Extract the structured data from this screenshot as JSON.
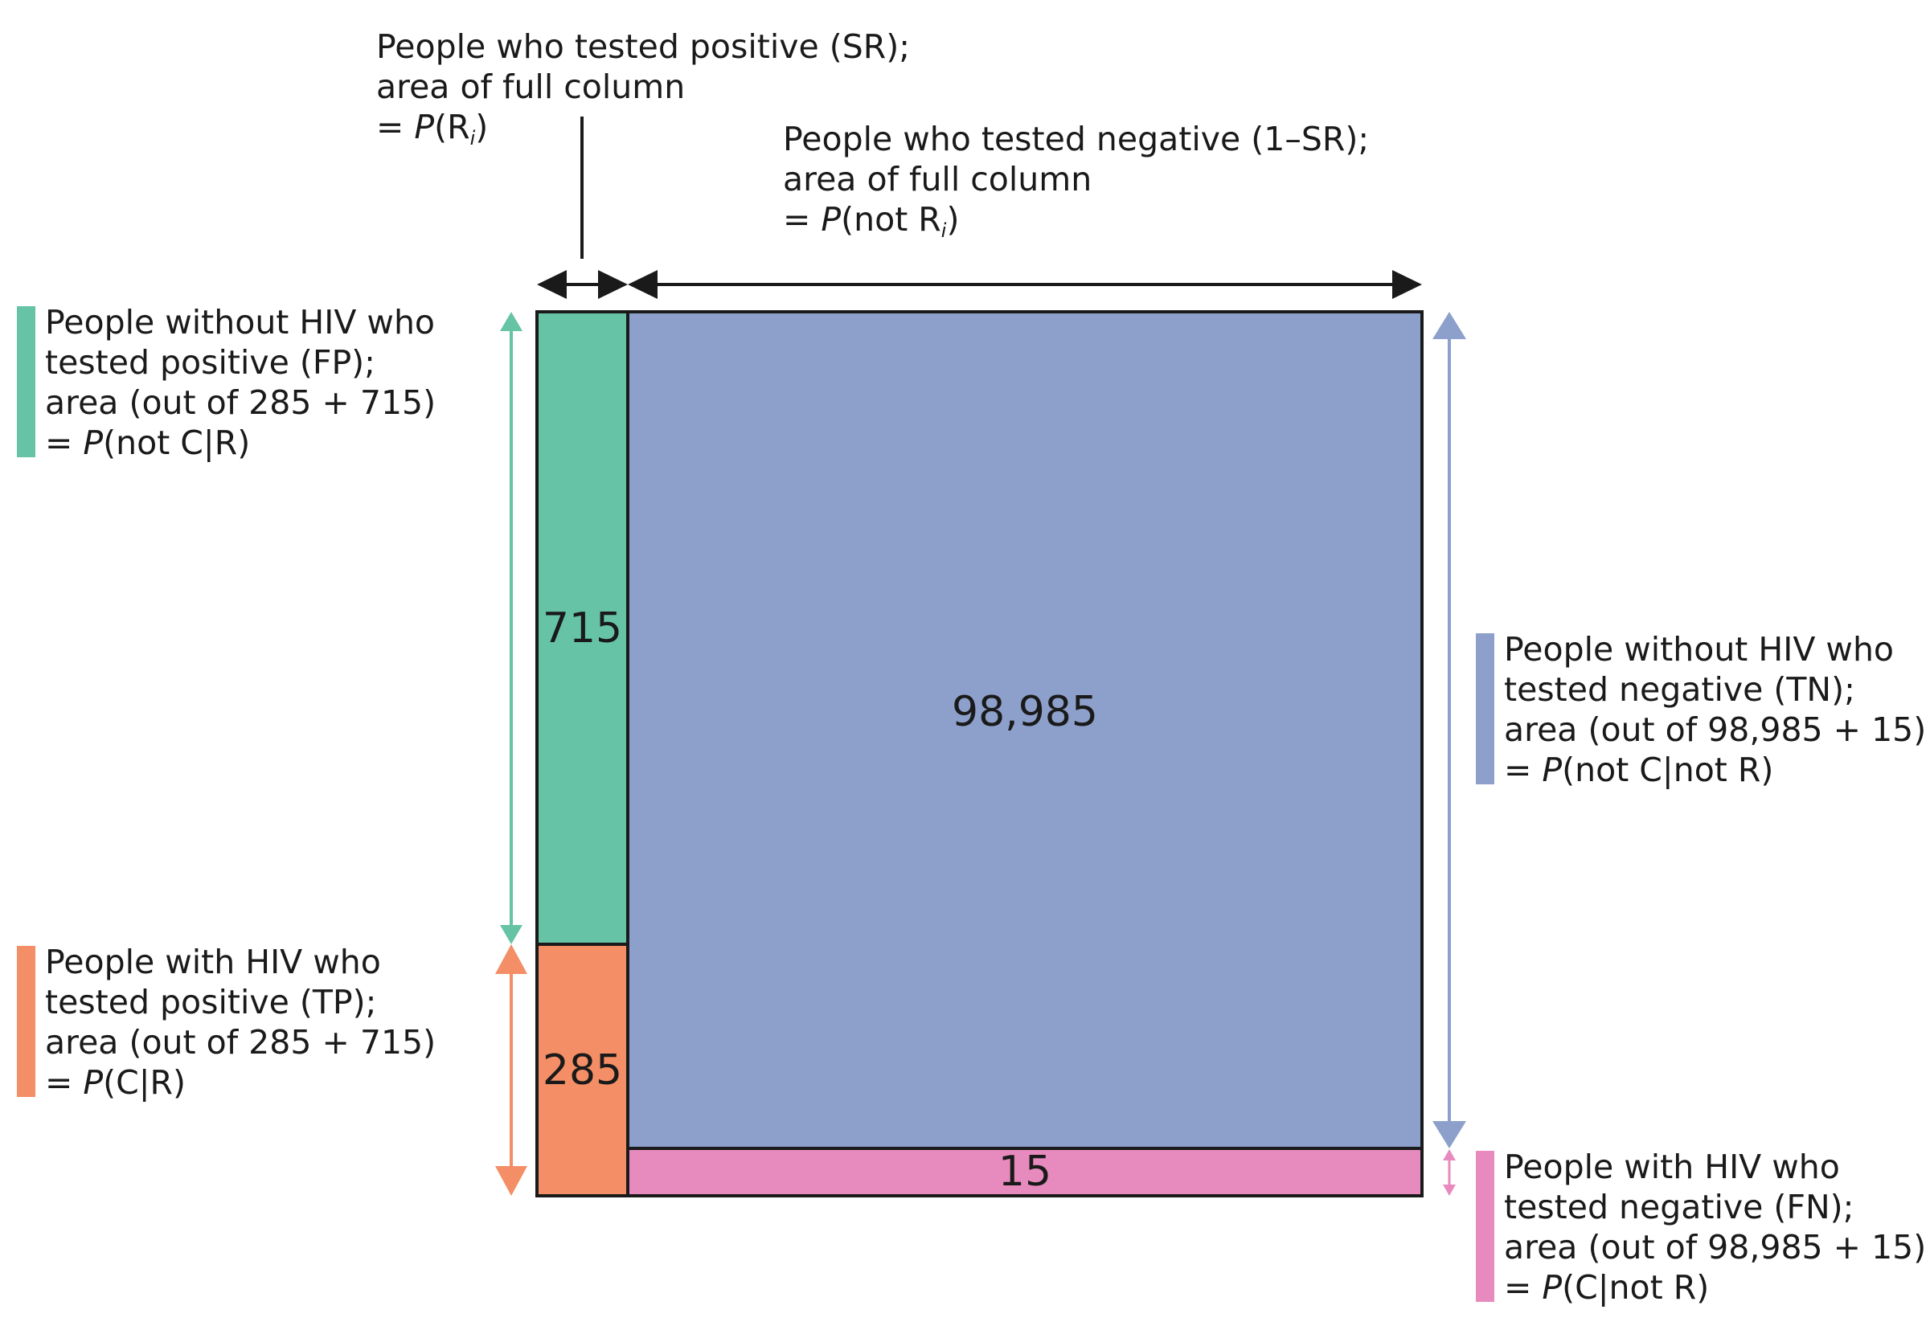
{
  "colors": {
    "fp": "#66c3a5",
    "tp": "#f48e66",
    "tn": "#8da0cb",
    "fn": "#e78bbe",
    "border": "#1a1a1a"
  },
  "chart_data": {
    "type": "mosaic",
    "cells": [
      {
        "id": "fp",
        "value": 715
      },
      {
        "id": "tp",
        "value": 285
      },
      {
        "id": "tn",
        "value": 98985
      },
      {
        "id": "fn",
        "value": 15
      }
    ]
  },
  "cells": {
    "fp": "715",
    "tp": "285",
    "tn": "98,985",
    "fn": "15"
  },
  "top_labels": {
    "positive": {
      "line1": "People who tested positive (SR);",
      "line2": "area of full column",
      "line3_prefix": "= ",
      "line3_p": "P",
      "line3_open": "(R",
      "line3_sub": "i",
      "line3_close": ")"
    },
    "negative": {
      "line1": "People who tested negative (1–SR);",
      "line2": "area of full column",
      "line3_prefix": "= ",
      "line3_p": "P",
      "line3_open": "(not R",
      "line3_sub": "i",
      "line3_close": ")"
    }
  },
  "side_labels": {
    "fp": {
      "line1": "People without HIV who",
      "line2": "tested positive (FP);",
      "line3": "area (out of 285 + 715)",
      "line4_prefix": "= ",
      "line4_p": "P",
      "line4_rest": "(not C|R)"
    },
    "tp": {
      "line1": "People with HIV who",
      "line2": "tested positive (TP);",
      "line3": "area (out of 285 + 715)",
      "line4_prefix": "= ",
      "line4_p": "P",
      "line4_rest": "(C|R)"
    },
    "tn": {
      "line1": "People without HIV who",
      "line2": "tested negative (TN);",
      "line3": "area (out of 98,985 + 15)",
      "line4_prefix": "= ",
      "line4_p": "P",
      "line4_rest": "(not C|not R)"
    },
    "fn": {
      "line1": "People with HIV who",
      "line2": "tested negative (FN);",
      "line3": "area (out of 98,985 + 15)",
      "line4_prefix": "= ",
      "line4_p": "P",
      "line4_rest": "(C|not R)"
    }
  }
}
